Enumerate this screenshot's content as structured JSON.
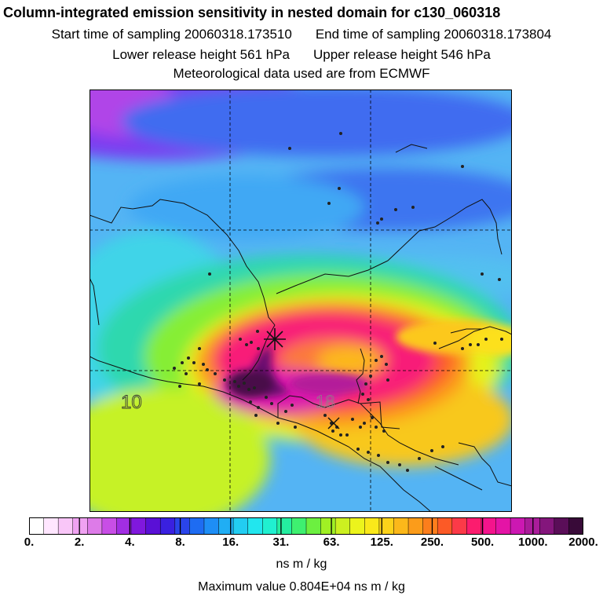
{
  "header": {
    "title": "Column-integrated emission sensitivity in nested domain for c130_060318",
    "start_time": "Start time of sampling 20060318.173510",
    "end_time": "End time of sampling 20060318.173804",
    "lower_release": "Lower release height  561 hPa",
    "upper_release": "Upper release height  546 hPa",
    "met_data": "Meteorological data used are from ECMWF"
  },
  "map": {
    "grid_label_lon": "10",
    "grid_label_faint": "18",
    "release_marker": "star-marker"
  },
  "colorbar": {
    "tick_labels": [
      "0.",
      "2.",
      "4.",
      "8.",
      "16.",
      "31.",
      "63.",
      "125.",
      "250.",
      "500.",
      "1000.",
      "2000."
    ],
    "colors": [
      "#ffffff",
      "#ffe6ff",
      "#f9c6f8",
      "#f0a2f2",
      "#dd7be8",
      "#c84ee6",
      "#a22ee3",
      "#8018dd",
      "#5a10d6",
      "#3a20e0",
      "#2a44ea",
      "#1e6cf2",
      "#1e8ef6",
      "#20aef4",
      "#22cdf2",
      "#22e6ee",
      "#20f0d0",
      "#24eea0",
      "#3ef070",
      "#6cf040",
      "#a0f024",
      "#ccf020",
      "#ecf41c",
      "#fae81a",
      "#fcd21a",
      "#fcb81a",
      "#fc9c1a",
      "#fc7e1c",
      "#fc5a26",
      "#fc3a48",
      "#fc1c6e",
      "#f4148c",
      "#e414a6",
      "#cc18b2",
      "#aa1c9a",
      "#84167c",
      "#5a0e58",
      "#380a38"
    ],
    "units": "ns m / kg",
    "max_value": "Maximum value  0.804E+04 ns m / kg"
  }
}
